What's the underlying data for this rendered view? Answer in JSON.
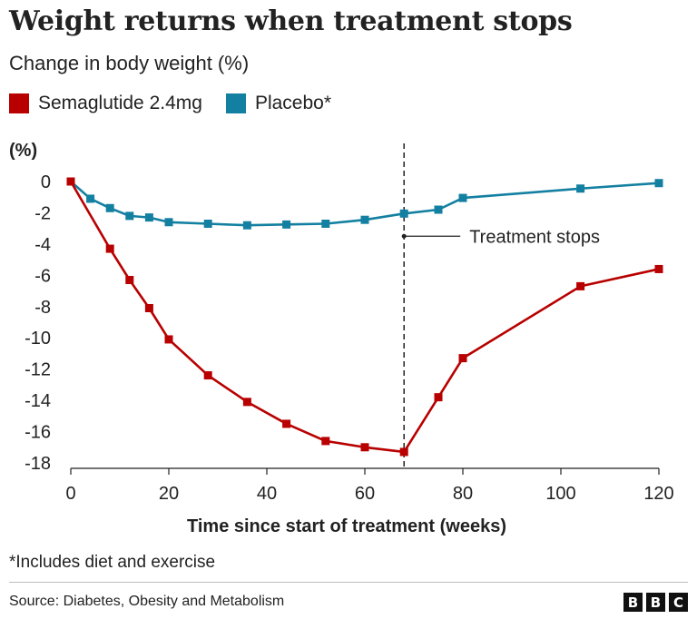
{
  "title": "Weight returns when treatment stops",
  "subtitle": "Change in body weight (%)",
  "legend": [
    {
      "label": "Semaglutide 2.4mg",
      "color": "#b80000"
    },
    {
      "label": "Placebo*",
      "color": "#1380a1"
    }
  ],
  "footnote": "*Includes diet and exercise",
  "source": "Source: Diabetes, Obesity and Metabolism",
  "logo": [
    "B",
    "B",
    "C"
  ],
  "chart_data": {
    "type": "line",
    "ylabel": "(%)",
    "xlabel": "Time since start of treatment (weeks)",
    "xlim": [
      0,
      120
    ],
    "ylim": [
      -18,
      0
    ],
    "xticks": [
      0,
      20,
      40,
      60,
      80,
      100,
      120
    ],
    "yticks": [
      0,
      -2,
      -4,
      -6,
      -8,
      -10,
      -12,
      -14,
      -16,
      -18
    ],
    "series": [
      {
        "name": "Semaglutide 2.4mg",
        "color": "#b80000",
        "x": [
          0,
          8,
          12,
          16,
          20,
          28,
          36,
          44,
          52,
          60,
          68,
          75,
          80,
          104,
          120
        ],
        "y": [
          0,
          -4.3,
          -6.3,
          -8.1,
          -10.1,
          -12.4,
          -14.1,
          -15.5,
          -16.6,
          -17.0,
          -17.3,
          -13.8,
          -11.3,
          -6.7,
          -5.6
        ]
      },
      {
        "name": "Placebo*",
        "color": "#1380a1",
        "x": [
          0,
          4,
          8,
          12,
          16,
          20,
          28,
          36,
          44,
          52,
          60,
          68,
          75,
          80,
          104,
          120
        ],
        "y": [
          0,
          -1.1,
          -1.7,
          -2.2,
          -2.3,
          -2.6,
          -2.7,
          -2.8,
          -2.75,
          -2.7,
          -2.45,
          -2.05,
          -1.8,
          -1.05,
          -0.45,
          -0.1
        ]
      }
    ],
    "annotation": {
      "text": "Treatment stops",
      "x": 68
    },
    "grid": false,
    "legend_position": "top-left"
  }
}
